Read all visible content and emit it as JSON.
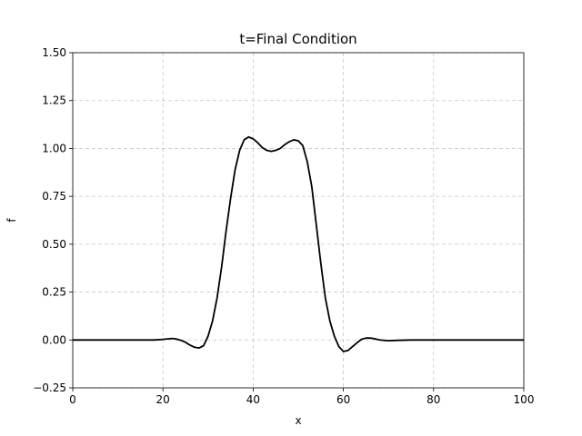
{
  "chart_data": {
    "type": "line",
    "title": "t=Final Condition",
    "xlabel": "x",
    "ylabel": "f",
    "xlim": [
      0,
      100
    ],
    "ylim": [
      -0.25,
      1.5
    ],
    "grid": true,
    "line_color": "#000000",
    "x_ticks": [
      0,
      20,
      40,
      60,
      80,
      100
    ],
    "y_ticks": [
      -0.25,
      0.0,
      0.25,
      0.5,
      0.75,
      1.0,
      1.25,
      1.5
    ],
    "x_tick_labels": [
      "0",
      "20",
      "40",
      "60",
      "80",
      "100"
    ],
    "y_tick_labels": [
      "−0.25",
      "0.00",
      "0.25",
      "0.50",
      "0.75",
      "1.00",
      "1.25",
      "1.50"
    ],
    "series": [
      {
        "x": [
          0,
          5,
          10,
          15,
          18,
          20,
          22,
          23,
          24,
          25,
          26,
          27,
          28,
          29,
          30,
          31,
          32,
          33,
          34,
          35,
          36,
          37,
          38,
          39,
          40,
          41,
          42,
          43,
          44,
          45,
          46,
          47,
          48,
          49,
          50,
          51,
          52,
          53,
          54,
          55,
          56,
          57,
          58,
          59,
          60,
          61,
          62,
          63,
          64,
          65,
          66,
          67,
          68,
          70,
          72,
          75,
          80,
          85,
          90,
          95,
          100
        ],
        "y": [
          0.0,
          0.0,
          0.0,
          0.0,
          0.0,
          0.003,
          0.008,
          0.005,
          -0.002,
          -0.012,
          -0.027,
          -0.038,
          -0.042,
          -0.03,
          0.02,
          0.1,
          0.22,
          0.38,
          0.57,
          0.74,
          0.89,
          0.99,
          1.045,
          1.06,
          1.05,
          1.03,
          1.005,
          0.99,
          0.985,
          0.99,
          1.0,
          1.02,
          1.035,
          1.045,
          1.04,
          1.015,
          0.93,
          0.8,
          0.6,
          0.4,
          0.22,
          0.1,
          0.02,
          -0.035,
          -0.06,
          -0.055,
          -0.035,
          -0.015,
          0.003,
          0.01,
          0.01,
          0.006,
          0.0,
          -0.004,
          -0.002,
          0.0,
          0.0,
          0.0,
          0.0,
          0.0,
          0.0
        ]
      }
    ]
  }
}
